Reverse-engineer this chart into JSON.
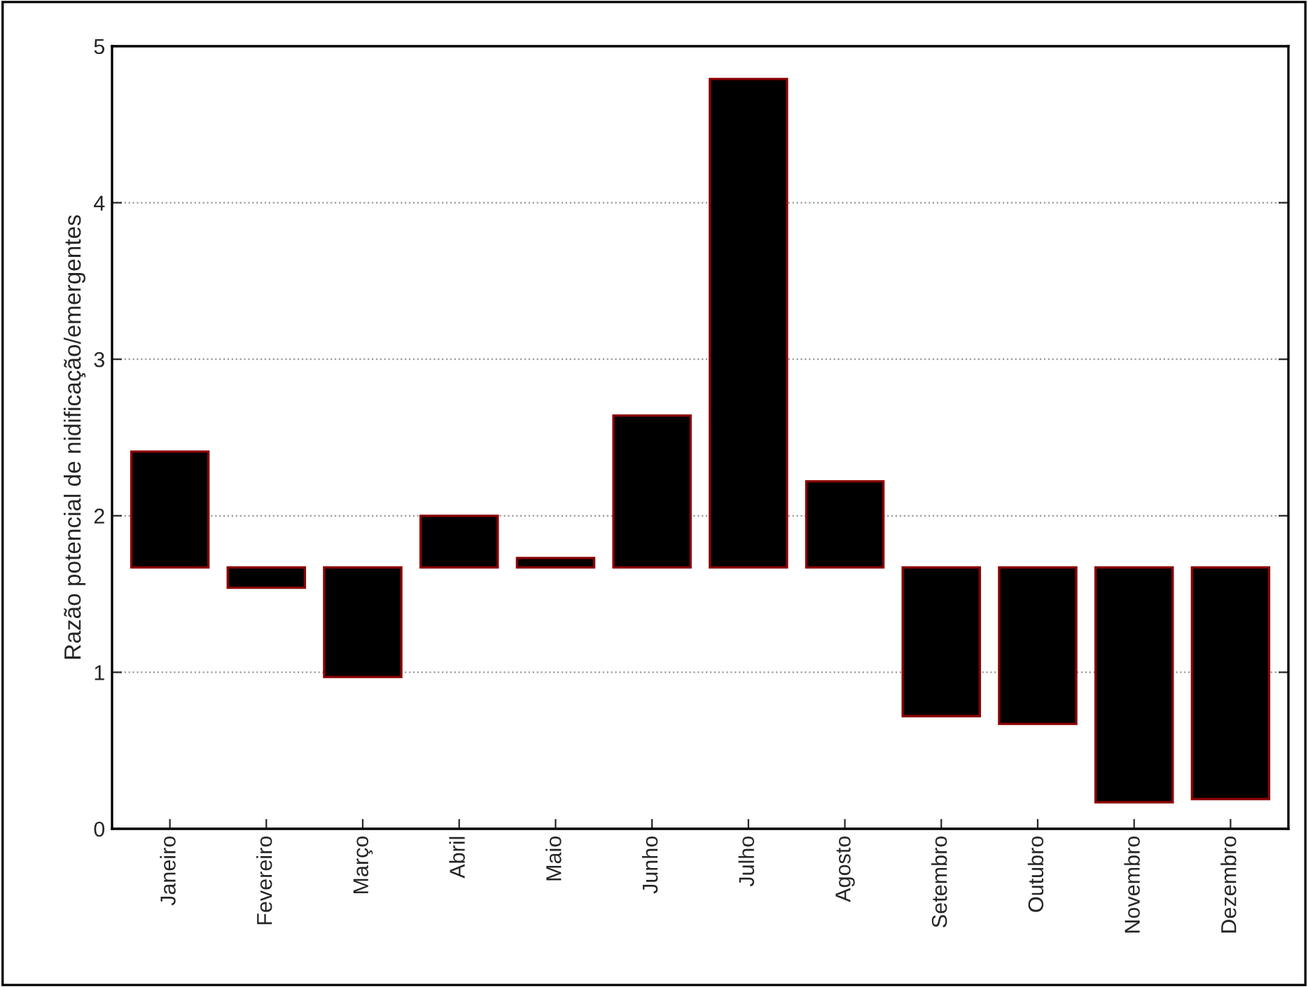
{
  "chart_data": {
    "type": "bar",
    "ylabel": "Razão potencial de nidificação/emergentes",
    "categories": [
      "Janeiro",
      "Fevereiro",
      "Março",
      "Abril",
      "Maio",
      "Junho",
      "Julho",
      "Agosto",
      "Setembro",
      "Outubro",
      "Novembro",
      "Dezembro"
    ],
    "base": [
      1.67,
      1.67,
      1.67,
      1.67,
      1.67,
      1.67,
      1.67,
      1.67,
      1.67,
      1.67,
      1.67,
      1.67
    ],
    "values": [
      0.74,
      -0.13,
      -0.7,
      0.33,
      0.06,
      0.97,
      3.12,
      0.55,
      -0.95,
      -1.0,
      -1.5,
      -1.48
    ],
    "color": "#000000",
    "ylim": [
      0,
      5
    ],
    "yticks": [
      0,
      1,
      2,
      3,
      4,
      5
    ],
    "grid": "y",
    "legend": false
  }
}
